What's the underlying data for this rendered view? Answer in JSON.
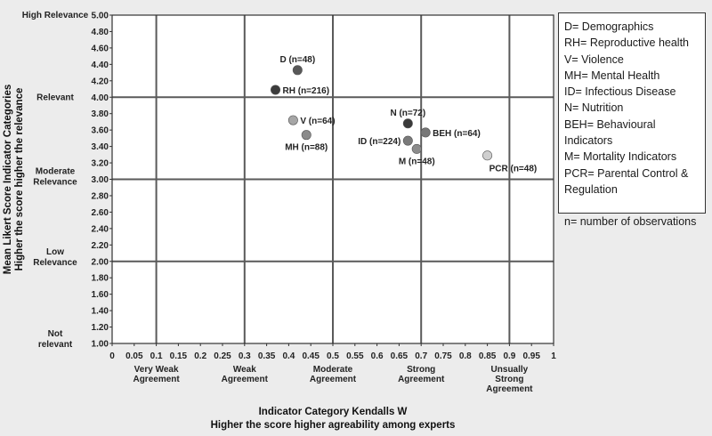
{
  "chart_data": {
    "type": "scatter",
    "xlabel": "Indicator Category Kendalls W",
    "xlabel_sub": "Higher the score higher agreability among experts",
    "ylabel": "Mean Likert Score Indicator Categories",
    "ylabel_sub": "Higher the score higher the relevance",
    "xlim": [
      0,
      1
    ],
    "ylim": [
      1.0,
      5.0
    ],
    "x_ticks": [
      "0",
      "0.05",
      "0.1",
      "0.15",
      "0.2",
      "0.25",
      "0.3",
      "0.35",
      "0.4",
      "0.45",
      "0.5",
      "0.55",
      "0.6",
      "0.65",
      "0.7",
      "0.75",
      "0.8",
      "0.85",
      "0.9",
      "0.95",
      "1"
    ],
    "y_ticks": [
      "1.00",
      "1.20",
      "1.40",
      "1.60",
      "1.80",
      "2.00",
      "2.20",
      "2.40",
      "2.60",
      "2.80",
      "3.00",
      "3.20",
      "3.40",
      "3.60",
      "3.80",
      "4.00",
      "4.20",
      "4.40",
      "4.60",
      "4.80",
      "5.00"
    ],
    "x_major_grid": [
      0.1,
      0.3,
      0.5,
      0.7,
      0.9
    ],
    "y_major_grid": [
      2.0,
      3.0,
      4.0
    ],
    "grid": true,
    "x_categories": [
      {
        "at": 0.1,
        "lines": [
          "Very Weak",
          "Agreement"
        ]
      },
      {
        "at": 0.3,
        "lines": [
          "Weak",
          "Agreement"
        ]
      },
      {
        "at": 0.5,
        "lines": [
          "Moderate",
          "Agreement"
        ]
      },
      {
        "at": 0.7,
        "lines": [
          "Strong",
          "Agreement"
        ]
      },
      {
        "at": 0.9,
        "lines": [
          "Unsually",
          "Strong",
          "Agreement"
        ]
      }
    ],
    "y_categories": [
      {
        "at": 5.0,
        "lines": [
          "High Relevance"
        ]
      },
      {
        "at": 4.0,
        "lines": [
          "Relevant"
        ]
      },
      {
        "at": 3.0,
        "lines": [
          "Moderate",
          "Relevance"
        ]
      },
      {
        "at": 2.0,
        "lines": [
          "Low",
          "Relevance"
        ]
      },
      {
        "at": 1.0,
        "lines": [
          "Not",
          "relevant"
        ]
      }
    ],
    "points": [
      {
        "label": "D (n=48)",
        "x": 0.42,
        "y": 4.33,
        "color": "#585858",
        "label_pos": "above"
      },
      {
        "label": "RH (n=216)",
        "x": 0.37,
        "y": 4.09,
        "color": "#3c3c3c",
        "label_pos": "right"
      },
      {
        "label": "V (n=64)",
        "x": 0.41,
        "y": 3.72,
        "color": "#a6a6a6",
        "label_pos": "right"
      },
      {
        "label": "MH (n=88)",
        "x": 0.44,
        "y": 3.54,
        "color": "#8a8a8a",
        "label_pos": "below"
      },
      {
        "label": "N (n=72)",
        "x": 0.67,
        "y": 3.68,
        "color": "#3a3a3a",
        "label_pos": "above"
      },
      {
        "label": "ID (n=224)",
        "x": 0.67,
        "y": 3.47,
        "color": "#7a7a7a",
        "label_pos": "left"
      },
      {
        "label": "BEH (n=64)",
        "x": 0.71,
        "y": 3.57,
        "color": "#777777",
        "label_pos": "right"
      },
      {
        "label": "M (n=48)",
        "x": 0.69,
        "y": 3.37,
        "color": "#8c8c8c",
        "label_pos": "below"
      },
      {
        "label": "PCR (n=48)",
        "x": 0.85,
        "y": 3.29,
        "color": "#cfcfcf",
        "label_pos": "belowright"
      }
    ]
  },
  "legend": {
    "items": [
      "D= Demographics",
      "RH= Reproductive health",
      "V= Violence",
      "MH= Mental Health",
      "ID= Infectious Disease",
      "N= Nutrition",
      "BEH= Behavioural Indicators",
      "M= Mortality Indicators",
      "PCR= Parental Control &",
      "Regulation"
    ],
    "note": "n= number of observations"
  }
}
